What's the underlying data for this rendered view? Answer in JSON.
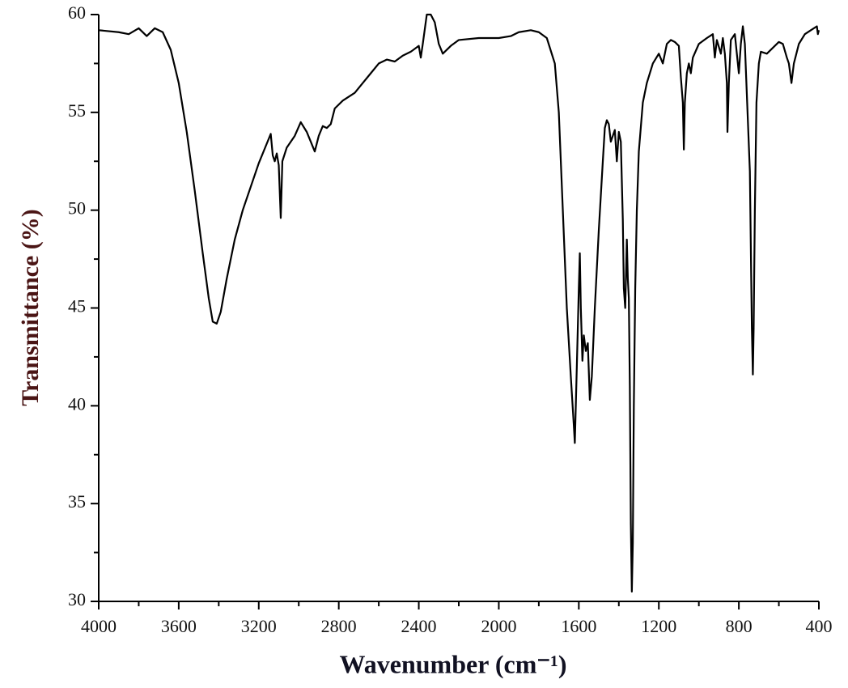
{
  "chart_data": {
    "type": "line",
    "xlabel": "Wavenumber (cm⁻¹)",
    "ylabel": "Transmittance (%)",
    "xlim": [
      4000,
      400
    ],
    "ylim": [
      30,
      60
    ],
    "xticks": [
      4000,
      3600,
      3200,
      2800,
      2400,
      2000,
      1600,
      1200,
      800,
      400
    ],
    "xminorticks": [
      3800,
      3400,
      3000,
      2600,
      2200,
      1800,
      1400,
      1000,
      600
    ],
    "yticks": [
      30,
      35,
      40,
      45,
      50,
      55,
      60
    ],
    "yminorticks": [
      32.5,
      37.5,
      42.5,
      47.5,
      52.5,
      57.5
    ],
    "color": "#000000",
    "x": [
      4000,
      3900,
      3850,
      3800,
      3760,
      3720,
      3680,
      3640,
      3600,
      3560,
      3520,
      3480,
      3450,
      3430,
      3410,
      3390,
      3360,
      3320,
      3280,
      3240,
      3200,
      3160,
      3140,
      3130,
      3120,
      3110,
      3100,
      3090,
      3082,
      3060,
      3020,
      2990,
      2960,
      2940,
      2920,
      2900,
      2880,
      2860,
      2840,
      2820,
      2780,
      2720,
      2680,
      2640,
      2600,
      2560,
      2520,
      2480,
      2440,
      2400,
      2390,
      2380,
      2360,
      2340,
      2320,
      2300,
      2280,
      2240,
      2200,
      2100,
      2000,
      1940,
      1900,
      1840,
      1800,
      1760,
      1720,
      1700,
      1680,
      1660,
      1640,
      1625,
      1620,
      1610,
      1600,
      1595,
      1590,
      1582,
      1575,
      1565,
      1555,
      1545,
      1535,
      1520,
      1500,
      1480,
      1470,
      1460,
      1450,
      1440,
      1430,
      1420,
      1410,
      1400,
      1390,
      1380,
      1375,
      1368,
      1360,
      1355,
      1350,
      1345,
      1340,
      1335,
      1330,
      1325,
      1318,
      1310,
      1300,
      1280,
      1260,
      1230,
      1200,
      1180,
      1160,
      1140,
      1120,
      1100,
      1090,
      1080,
      1075,
      1070,
      1060,
      1050,
      1040,
      1030,
      1000,
      960,
      930,
      920,
      910,
      890,
      880,
      870,
      860,
      857,
      850,
      840,
      820,
      810,
      800,
      790,
      780,
      770,
      745,
      735,
      730,
      726,
      720,
      712,
      700,
      690,
      660,
      630,
      600,
      580,
      560,
      550,
      537,
      525,
      500,
      470,
      440,
      410,
      405,
      400
    ],
    "values": [
      59.2,
      59.1,
      59.0,
      59.3,
      58.9,
      59.3,
      59.1,
      58.2,
      56.5,
      54.0,
      51.0,
      47.8,
      45.5,
      44.3,
      44.2,
      44.8,
      46.5,
      48.5,
      50.0,
      51.2,
      52.4,
      53.4,
      53.9,
      52.8,
      52.5,
      52.9,
      52.3,
      49.6,
      52.5,
      53.2,
      53.8,
      54.5,
      54.0,
      53.5,
      53.0,
      53.8,
      54.3,
      54.2,
      54.4,
      55.2,
      55.6,
      56.0,
      56.5,
      57.0,
      57.5,
      57.7,
      57.6,
      57.9,
      58.1,
      58.4,
      57.8,
      58.5,
      60.0,
      60.0,
      59.6,
      58.5,
      58.0,
      58.4,
      58.7,
      58.8,
      58.8,
      58.9,
      59.1,
      59.2,
      59.1,
      58.8,
      57.5,
      55.0,
      50.0,
      45.0,
      41.5,
      39.0,
      38.1,
      42.0,
      46.0,
      47.8,
      45.0,
      42.3,
      43.6,
      42.8,
      43.2,
      40.3,
      41.5,
      45.0,
      49.0,
      52.5,
      54.2,
      54.6,
      54.4,
      53.5,
      53.8,
      54.1,
      52.5,
      54.0,
      53.5,
      49.5,
      46.0,
      45.0,
      48.5,
      46.5,
      45.5,
      41.0,
      34.0,
      30.5,
      33.0,
      40.0,
      46.0,
      50.0,
      53.0,
      55.5,
      56.5,
      57.5,
      58.0,
      57.5,
      58.5,
      58.7,
      58.6,
      58.4,
      56.8,
      55.5,
      53.1,
      55.5,
      57.0,
      57.5,
      57.0,
      57.8,
      58.5,
      58.8,
      59.0,
      57.8,
      58.7,
      58.0,
      58.8,
      58.0,
      56.5,
      54.0,
      56.5,
      58.7,
      59.0,
      58.0,
      57.0,
      58.5,
      59.4,
      58.5,
      52.0,
      44.0,
      41.6,
      44.0,
      50.0,
      55.5,
      57.5,
      58.1,
      58.0,
      58.3,
      58.6,
      58.5,
      57.8,
      57.5,
      56.5,
      57.5,
      58.5,
      59.0,
      59.2,
      59.4,
      59.0,
      59.2
    ]
  }
}
